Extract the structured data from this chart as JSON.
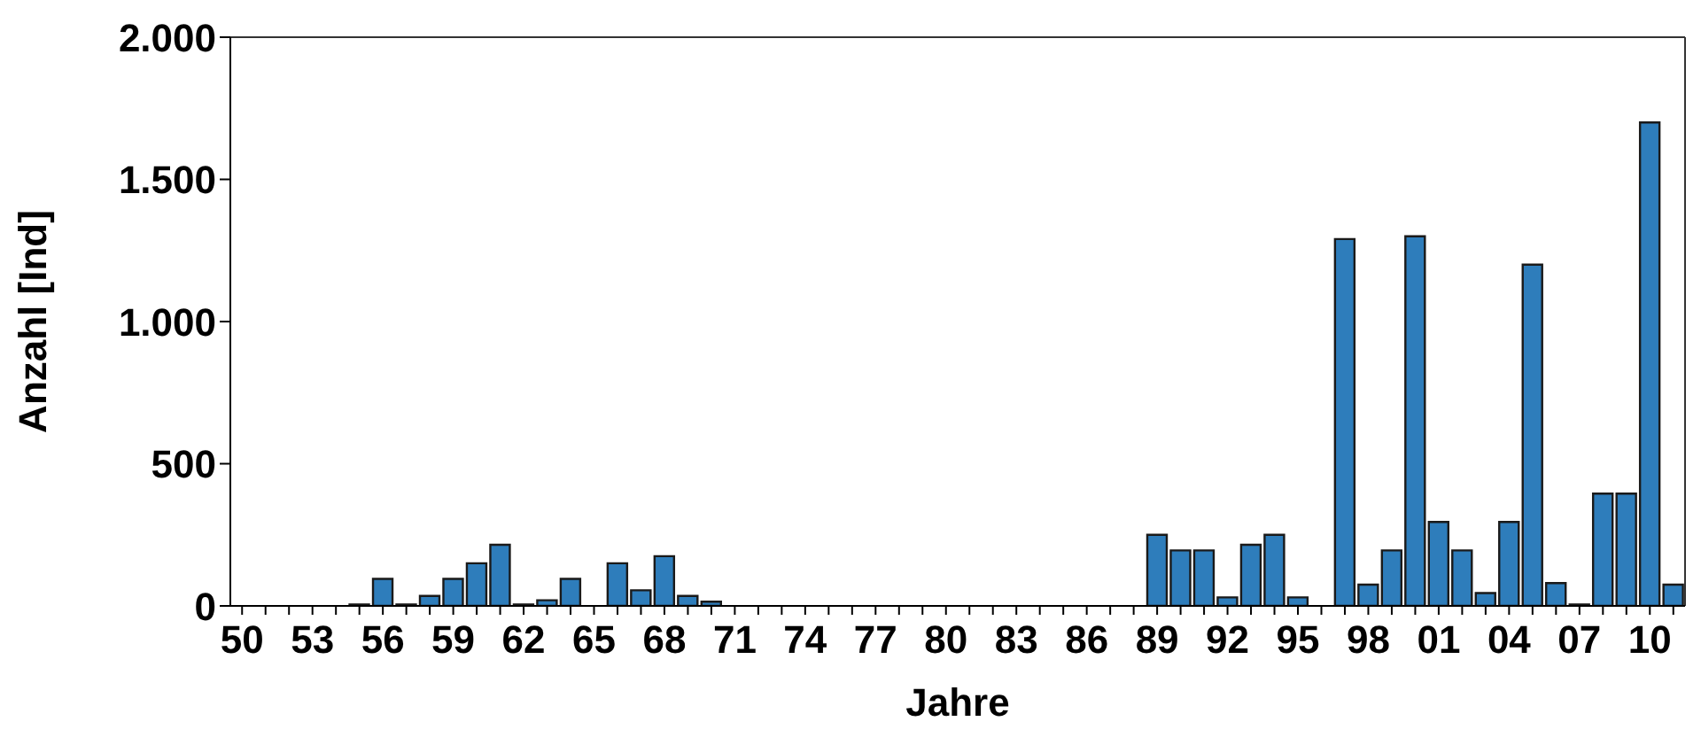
{
  "chart_data": {
    "type": "bar",
    "xlabel": "Jahre",
    "ylabel": "Anzahl [Ind]",
    "categories": [
      "50",
      null,
      null,
      "53",
      null,
      null,
      "56",
      null,
      null,
      "59",
      null,
      null,
      "62",
      null,
      null,
      "65",
      null,
      null,
      "68",
      null,
      null,
      "71",
      null,
      null,
      "74",
      null,
      null,
      "77",
      null,
      null,
      "80",
      null,
      null,
      "83",
      null,
      null,
      "86",
      null,
      null,
      "89",
      null,
      null,
      "92",
      null,
      null,
      "95",
      null,
      null,
      "98",
      null,
      null,
      "01",
      null,
      null,
      "04",
      null,
      null,
      "07",
      null,
      null,
      "10",
      null
    ],
    "values": [
      0,
      0,
      0,
      0,
      0,
      5,
      95,
      5,
      35,
      95,
      150,
      215,
      5,
      20,
      95,
      0,
      150,
      55,
      175,
      35,
      15,
      0,
      0,
      0,
      0,
      0,
      0,
      0,
      0,
      0,
      0,
      0,
      0,
      0,
      0,
      0,
      0,
      0,
      0,
      250,
      195,
      195,
      30,
      215,
      250,
      30,
      0,
      1290,
      75,
      195,
      1300,
      295,
      195,
      45,
      295,
      1200,
      80,
      5,
      395,
      395,
      1700,
      75
    ],
    "color": "#2e7dbb",
    "ylim": [
      0,
      2000
    ],
    "yticks": [
      0,
      500,
      {
        "value": 1000,
        "label": "1.000"
      },
      {
        "value": 1500,
        "label": "1.500"
      },
      {
        "value": 2000,
        "label": "2.000"
      }
    ],
    "grid": false
  }
}
